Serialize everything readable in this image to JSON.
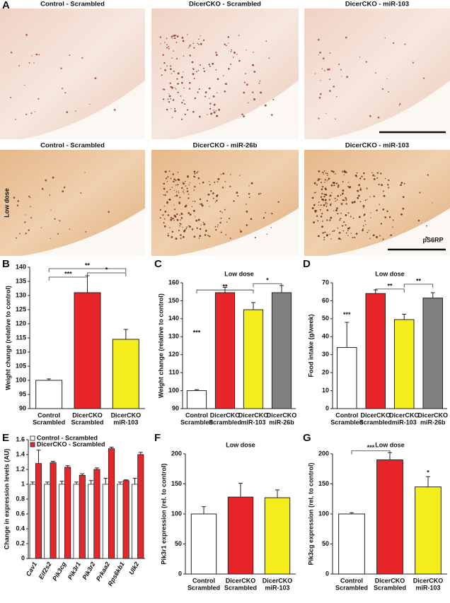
{
  "panel_labels": [
    "A",
    "B",
    "C",
    "D",
    "E",
    "F",
    "G"
  ],
  "panel_a": {
    "images": [
      {
        "title": "Control - Scrambled"
      },
      {
        "title": "DicerCKO - Scrambled"
      },
      {
        "title": "DicerCKO - miR-103"
      },
      {
        "title": "Control - Scrambled"
      },
      {
        "title": "DicerCKO - miR-26b"
      },
      {
        "title": "DicerCKO - miR-103"
      }
    ],
    "row_label": "Low dose",
    "stain_label": "pS6RP"
  },
  "chart_data": [
    {
      "type": "bar",
      "y_label": "Weight change (relative to control)",
      "categories": [
        [
          "Control",
          "Scrambled"
        ],
        [
          "DicerCKO",
          "Scrambled"
        ],
        [
          "DicerCKO",
          "miR-103"
        ]
      ],
      "values": [
        100,
        131,
        114.5
      ],
      "errors": [
        0.5,
        6,
        3.5
      ],
      "colors": [
        "#ffffff",
        "#e8262a",
        "#f5ec1c"
      ],
      "ylim": [
        90,
        140
      ],
      "yticks": [
        90,
        95,
        100,
        105,
        110,
        115,
        120,
        125,
        130,
        135,
        140
      ],
      "annotations": [
        "***",
        "**",
        "*"
      ]
    },
    {
      "type": "bar",
      "title": "Low dose",
      "y_label": "Weight change (relative to control)",
      "categories": [
        [
          "Control",
          "Scrambled"
        ],
        [
          "DicerCKO",
          "Scrambled"
        ],
        [
          "DicerCKO",
          "miR-103"
        ],
        [
          "DicerCKO",
          "miR-26b"
        ]
      ],
      "values": [
        100,
        154.5,
        145,
        154.5
      ],
      "errors": [
        0.5,
        3,
        4,
        4
      ],
      "colors": [
        "#ffffff",
        "#e8262a",
        "#f5ec1c",
        "#808080"
      ],
      "ylim": [
        90,
        160
      ],
      "yticks": [
        90,
        100,
        110,
        120,
        130,
        140,
        150,
        160
      ],
      "annotations": [
        "***",
        "**",
        "*"
      ]
    },
    {
      "type": "bar",
      "title": "Low dose",
      "y_label": "Food intake (g/week)",
      "categories": [
        [
          "Control",
          "Scrambled"
        ],
        [
          "DicerCKO",
          "Scrambled"
        ],
        [
          "DicerCKO",
          "miR-103"
        ],
        [
          "DicerCKO",
          "miR-26b"
        ]
      ],
      "values": [
        34,
        64,
        49.5,
        61.5
      ],
      "errors": [
        14,
        2,
        3,
        3
      ],
      "colors": [
        "#ffffff",
        "#e8262a",
        "#f5ec1c",
        "#808080"
      ],
      "ylim": [
        0,
        70
      ],
      "yticks": [
        0,
        10,
        20,
        30,
        40,
        50,
        60,
        70
      ],
      "annotations": [
        "***",
        "**",
        "**"
      ]
    },
    {
      "type": "grouped-bar",
      "y_label": "Change in expression levels (AU)",
      "categories": [
        "Cav1",
        "Eif2s2",
        "Pik3cg",
        "Pik3r1",
        "Pik3r2",
        "Prkaa2",
        "Rps6kb1",
        "Ulk2"
      ],
      "series": [
        {
          "name": "Control - Scrambled",
          "color": "#ffffff",
          "values": [
            1,
            1,
            1,
            1,
            1,
            1,
            1,
            1
          ],
          "errors": [
            0.03,
            0.03,
            0.04,
            0.03,
            0.05,
            0.08,
            0.03,
            0.08
          ]
        },
        {
          "name": "DicerCKO - Scrambled",
          "color": "#e8262a",
          "values": [
            1.28,
            1.29,
            1.23,
            1.12,
            1.2,
            1.48,
            1.05,
            1.4
          ],
          "errors": [
            0.18,
            0.02,
            0.02,
            0.02,
            0.02,
            0.02,
            0.01,
            0.03
          ]
        }
      ],
      "ylim": [
        0,
        1.6
      ],
      "yticks": [
        0,
        0.2,
        0.4,
        0.6,
        0.8,
        1,
        1.2,
        1.4,
        1.6
      ],
      "legend": "top-left"
    },
    {
      "type": "bar",
      "title": "Low dose",
      "y_label": "Pik3r1 expression (rel. to control)",
      "categories": [
        [
          "Control",
          "Scrambled"
        ],
        [
          "DicerCKO",
          "Scrambled"
        ],
        [
          "DicerCKO",
          "miR-103"
        ]
      ],
      "values": [
        100,
        128,
        127
      ],
      "errors": [
        12,
        23,
        13
      ],
      "colors": [
        "#ffffff",
        "#e8262a",
        "#f5ec1c"
      ],
      "ylim": [
        0,
        200
      ],
      "yticks": [
        0,
        50,
        100,
        150,
        200
      ]
    },
    {
      "type": "bar",
      "title": "Low dose",
      "y_label": "Pik3cg expression (rel. to control)",
      "categories": [
        [
          "Control",
          "Scrambled"
        ],
        [
          "DicerCKO",
          "Scrambled"
        ],
        [
          "DicerCKO",
          "miR-103"
        ]
      ],
      "values": [
        100,
        190,
        145
      ],
      "errors": [
        2,
        12,
        17
      ],
      "colors": [
        "#ffffff",
        "#e8262a",
        "#f5ec1c"
      ],
      "ylim": [
        0,
        200
      ],
      "yticks": [
        0,
        50,
        100,
        150,
        200
      ],
      "annotations": [
        "***",
        "*"
      ]
    }
  ]
}
